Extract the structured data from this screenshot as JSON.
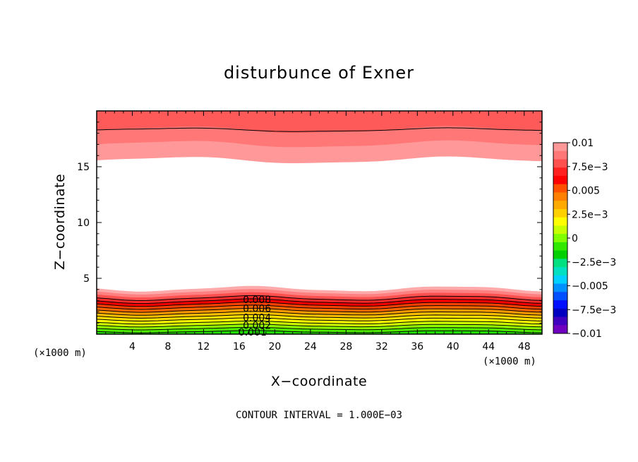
{
  "chart_data": {
    "type": "contour",
    "title": "disturbunce of Exner",
    "xlabel": "X−coordinate",
    "ylabel": "Z−coordinate",
    "x_unit_left": "(×1000 m)",
    "x_unit_right": "(×1000 m)",
    "xlim": [
      0,
      50
    ],
    "ylim": [
      0,
      20
    ],
    "x_ticks": [
      "4",
      "8",
      "12",
      "16",
      "20",
      "24",
      "28",
      "32",
      "36",
      "40",
      "44",
      "48"
    ],
    "y_ticks": [
      "5",
      "10",
      "15"
    ],
    "contour_interval_text": "CONTOUR INTERVAL = 1.000E−03",
    "contour_labels": [
      {
        "text": "0.008",
        "x": 18,
        "z": 3.1
      },
      {
        "text": "0.006",
        "x": 18,
        "z": 2.3
      },
      {
        "text": "0.004",
        "x": 18,
        "z": 1.5
      },
      {
        "text": "0.002",
        "x": 18,
        "z": 0.8
      },
      {
        "text": "0.001",
        "x": 17.5,
        "z": 0.2
      }
    ],
    "colorbar": {
      "ticks": [
        "0.01",
        "7.5e−3",
        "0.005",
        "2.5e−3",
        "0",
        "−2.5e−3",
        "−0.005",
        "−7.5e−3",
        "−0.01"
      ],
      "colors_top_to_bottom": [
        "#ff9999",
        "#ff7777",
        "#ff5050",
        "#ff2020",
        "#ff0000",
        "#ff5000",
        "#ff8000",
        "#ffaa00",
        "#ffd000",
        "#ffff00",
        "#c8ff00",
        "#80ff00",
        "#30e800",
        "#00d000",
        "#00e080",
        "#00e0c0",
        "#00d0ff",
        "#0090ff",
        "#0050ff",
        "#0010ff",
        "#0000c0",
        "#4000c0",
        "#7000c0"
      ]
    },
    "bottom_band_colors_top_to_bottom": [
      "#ffaaaa",
      "#ff8080",
      "#ff5050",
      "#ff2a2a",
      "#ff0000",
      "#ff4000",
      "#ff6600",
      "#ff9900",
      "#ffc000",
      "#ffe000",
      "#ffff00",
      "#d0ff00",
      "#90ff00",
      "#50f000",
      "#20e000"
    ],
    "top_band_colors_top_to_bottom": [
      "#ff5a5a",
      "#ff7777",
      "#ff9999"
    ]
  }
}
